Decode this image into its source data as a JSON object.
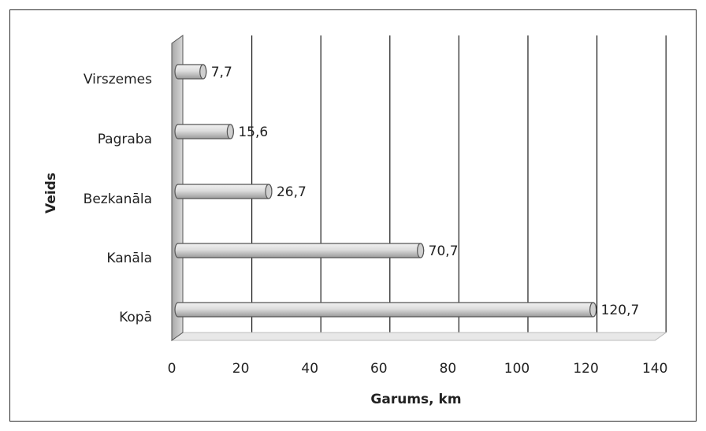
{
  "chart_data": {
    "type": "bar",
    "orientation": "horizontal",
    "title": "",
    "xlabel": "Garums, km",
    "ylabel": "Veids",
    "categories": [
      "Virszemes",
      "Pagraba",
      "Bezkanāla",
      "Kanāla",
      "Kopā"
    ],
    "values": [
      7.7,
      15.6,
      26.7,
      70.7,
      120.7
    ],
    "data_labels": [
      "7,7",
      "15,6",
      "26,7",
      "70,7",
      "120,7"
    ],
    "x_ticks": [
      0,
      20,
      40,
      60,
      80,
      100,
      120,
      140
    ],
    "xlim": [
      0,
      140
    ],
    "grid": "vertical major gridlines",
    "legend": "none",
    "style": "3D cylinder bars",
    "colors": {
      "bar_fill": "#d9d9d9",
      "bar_edge": "#555555",
      "grid": "#1a1a1a",
      "wall": "#c0c0c0"
    }
  }
}
